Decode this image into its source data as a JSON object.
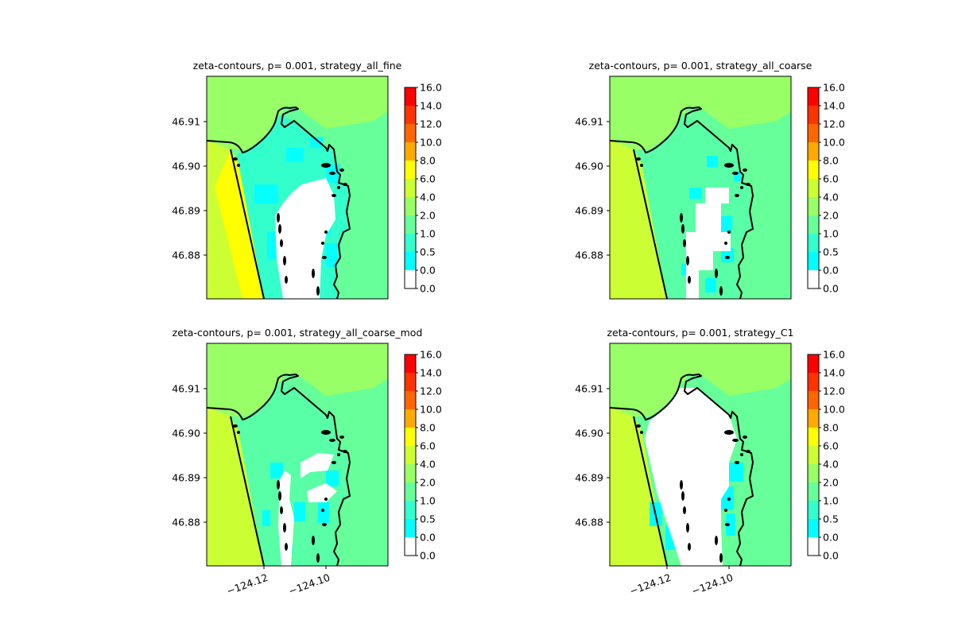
{
  "figure": {
    "panels": [
      {
        "title": "zeta-contours, p= 0.001, strategy_all_fine",
        "variant": "fine"
      },
      {
        "title": "zeta-contours, p= 0.001, strategy_all_coarse",
        "variant": "coarse"
      },
      {
        "title": "zeta-contours, p= 0.001, strategy_all_coarse_mod",
        "variant": "coarse_mod"
      },
      {
        "title": "zeta-contours, p= 0.001, strategy_C1",
        "variant": "c1"
      }
    ],
    "y_ticks": [
      "46.91",
      "46.90",
      "46.89",
      "46.88"
    ],
    "x_ticks": [
      "−124.12",
      "−124.10"
    ],
    "x_ticks_shown_on": "bottom row only",
    "colorbar": {
      "labels": [
        "16.0",
        "14.0",
        "12.0",
        "10.0",
        "8.0",
        "6.0",
        "4.0",
        "2.0",
        "1.0",
        "0.5",
        "0.0",
        "0.0"
      ],
      "bands_top_to_bottom": [
        {
          "range": "14.0-16.0",
          "color": "#ff0000"
        },
        {
          "range": "12.0-14.0",
          "color": "#ff3300"
        },
        {
          "range": "10.0-12.0",
          "color": "#ff6600"
        },
        {
          "range": "8.0-10.0",
          "color": "#ffaa00"
        },
        {
          "range": "6.0-8.0",
          "color": "#ffff00"
        },
        {
          "range": "4.0-6.0",
          "color": "#ccff33"
        },
        {
          "range": "2.0-4.0",
          "color": "#99ff66"
        },
        {
          "range": "1.0-2.0",
          "color": "#66ff99"
        },
        {
          "range": "0.5-1.0",
          "color": "#33ffcc"
        },
        {
          "range": "0.0-0.5",
          "color": "#00ffff"
        },
        {
          "range": "0.0-0.0",
          "color": "#ffffff"
        }
      ]
    },
    "colors": {
      "offshore_band": "#ccff33",
      "surf_band": "#ffff00",
      "north_ocean": "#99ff66",
      "land": "#66ff99",
      "bay_fill": "#33ffcc",
      "shallow": "#00ffff",
      "dry": "#ffffff",
      "coastline": "#000000"
    }
  }
}
